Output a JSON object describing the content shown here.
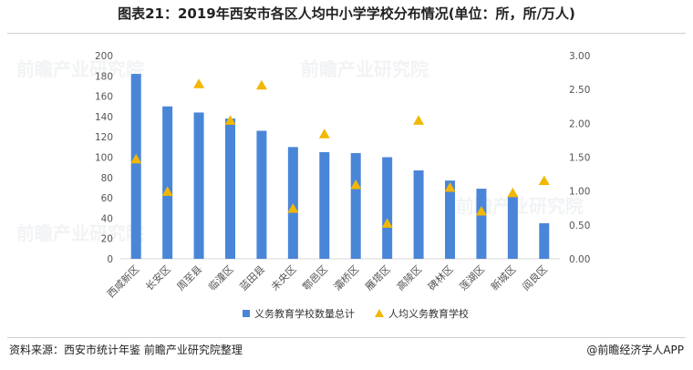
{
  "title": "图表21：2019年西安市各区人均中小学学校分布情况(单位：所，所/万人)",
  "footer": {
    "source": "资料来源：西安市统计年鉴 前瞻产业研究院整理",
    "brand": "@前瞻经济学人APP"
  },
  "colors": {
    "bar": "#4a86d8",
    "marker": "#f2b705",
    "axis_text": "#555555"
  },
  "chart_data": {
    "type": "bar",
    "categories": [
      "西咸新区",
      "长安区",
      "周至县",
      "临潼区",
      "蓝田县",
      "未央区",
      "鄠邑区",
      "灞桥区",
      "雁塔区",
      "高陵区",
      "碑林区",
      "莲湖区",
      "新城区",
      "阎良区"
    ],
    "series": [
      {
        "name": "义务教育学校数量总计",
        "type": "bar",
        "axis": "left",
        "values": [
          182,
          150,
          144,
          138,
          126,
          110,
          105,
          104,
          100,
          87,
          77,
          69,
          62,
          35
        ]
      },
      {
        "name": "人均义务教育学校",
        "type": "scatter",
        "marker": "triangle",
        "axis": "right",
        "values": [
          1.47,
          0.99,
          2.58,
          2.04,
          2.56,
          0.74,
          1.84,
          1.09,
          0.52,
          2.04,
          1.05,
          0.7,
          0.97,
          1.15
        ]
      }
    ],
    "y_left": {
      "min": 0,
      "max": 200,
      "step": 20
    },
    "y_right": {
      "min": 0,
      "max": 3,
      "step": 0.5,
      "decimals": 2
    },
    "grid": false,
    "legend_position": "bottom"
  }
}
